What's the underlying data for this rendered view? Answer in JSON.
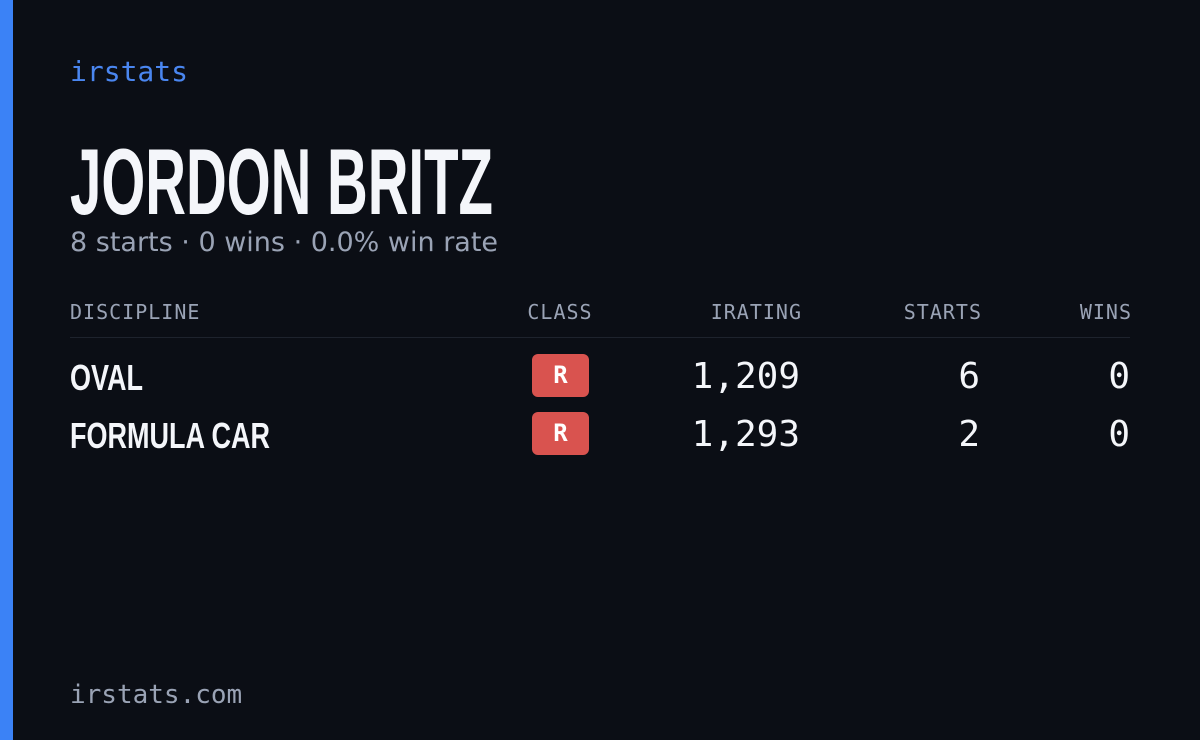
{
  "brand": "irstats",
  "driver": {
    "name": "JORDON BRITZ",
    "summary": "8 starts · 0 wins · 0.0% win rate"
  },
  "table": {
    "headers": [
      "DISCIPLINE",
      "CLASS",
      "IRATING",
      "STARTS",
      "WINS"
    ],
    "rows": [
      [
        "OVAL",
        "R",
        "1,209",
        "6",
        "0"
      ],
      [
        "FORMULA CAR",
        "R",
        "1,293",
        "2",
        "0"
      ]
    ]
  },
  "footer": "irstats.com"
}
